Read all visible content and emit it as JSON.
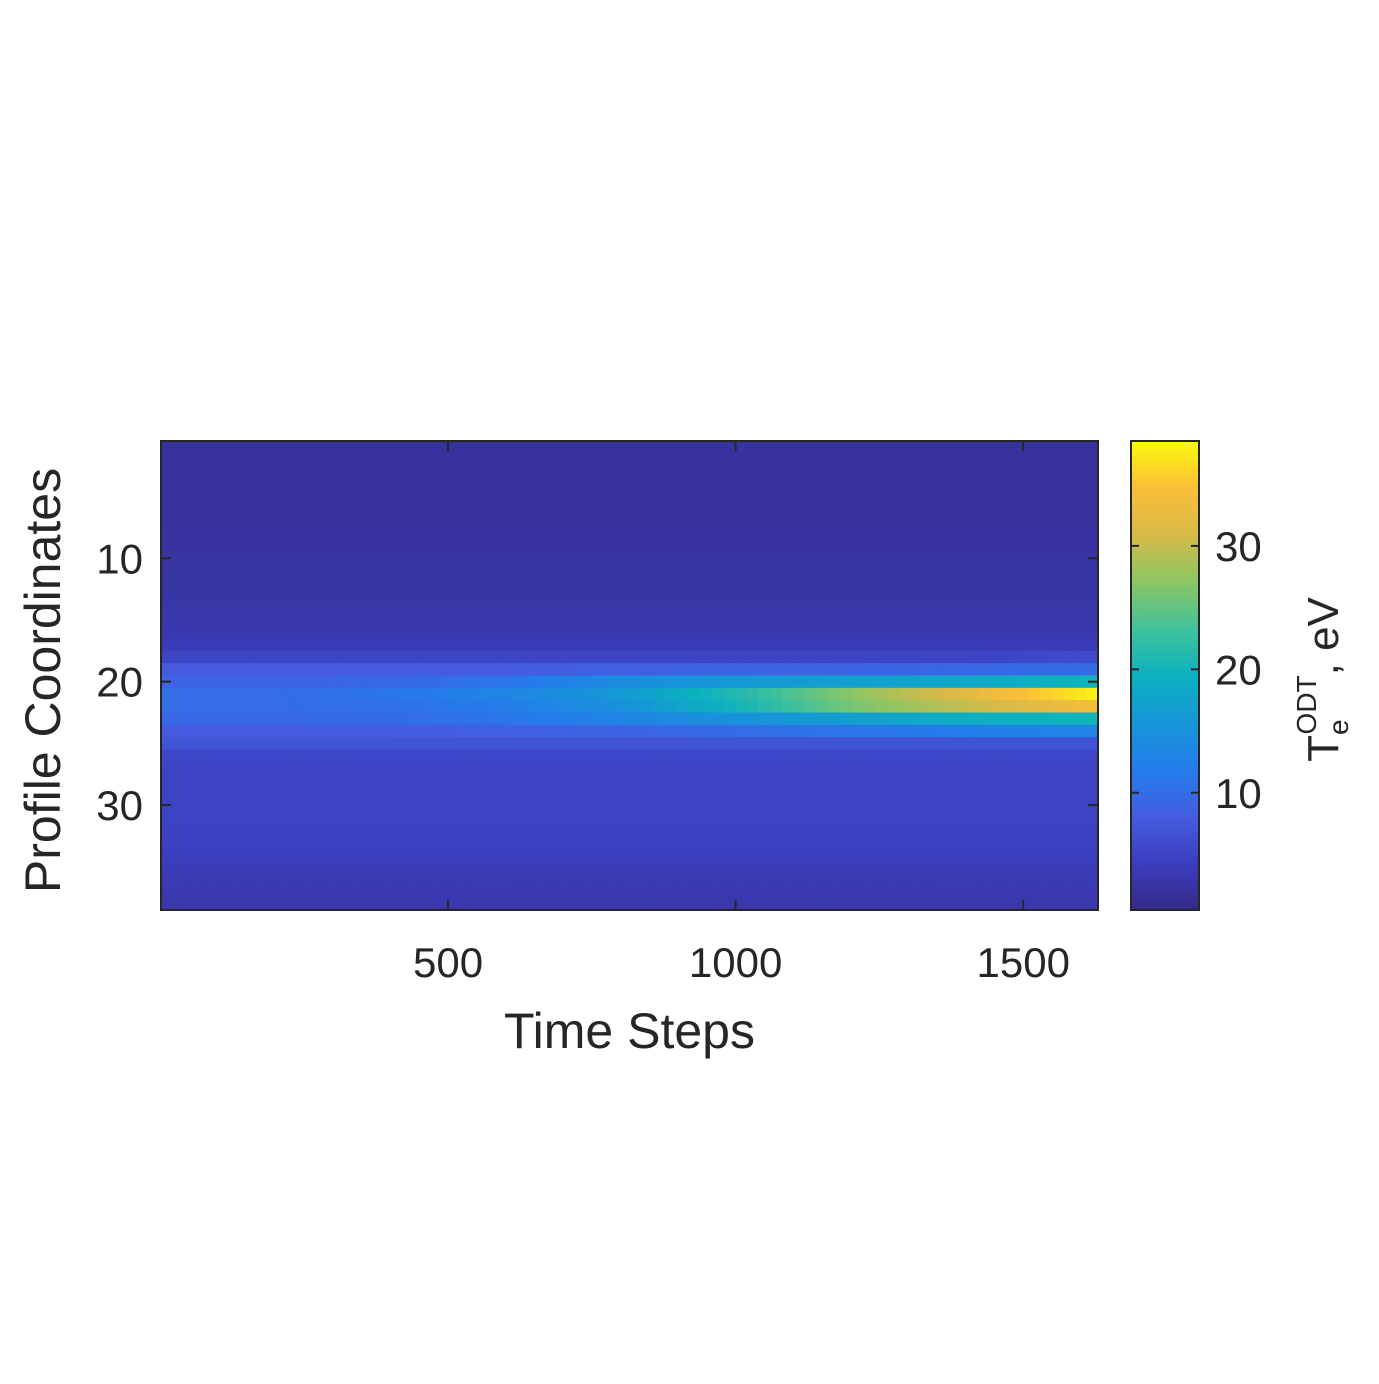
{
  "chart_data": {
    "type": "heatmap",
    "xlabel": "Time Steps",
    "ylabel": "Profile Coordinates",
    "colorbar_label": {
      "base": "T",
      "subscript": "e",
      "superscript": "ODT",
      "suffix": ", eV"
    },
    "xlim": [
      1,
      1630
    ],
    "ylim": [
      38.5,
      0.5
    ],
    "y_direction": "reversed",
    "xticks": [
      500,
      1000,
      1500
    ],
    "xtick_labels": [
      "500",
      "1000",
      "1500"
    ],
    "yticks": [
      10,
      20,
      30
    ],
    "ytick_labels": [
      "10",
      "20",
      "30"
    ],
    "clim": [
      0.5,
      38.5
    ],
    "cticks": [
      10,
      20,
      30
    ],
    "ctick_labels": [
      "10",
      "20",
      "30"
    ],
    "colormap": "parula",
    "grid": false,
    "n_rows": 38,
    "x_samples": [
      1,
      200,
      400,
      600,
      800,
      1000,
      1200,
      1400,
      1630
    ],
    "rows": [
      {
        "y": 1,
        "values": [
          2,
          2,
          2,
          2,
          2,
          2,
          2,
          2,
          2
        ]
      },
      {
        "y": 2,
        "values": [
          2,
          2,
          2,
          2,
          2,
          2,
          2,
          2,
          2
        ]
      },
      {
        "y": 3,
        "values": [
          2,
          2,
          2,
          2,
          2,
          2,
          2,
          2,
          2
        ]
      },
      {
        "y": 4,
        "values": [
          2,
          2,
          2,
          2,
          2,
          2,
          2,
          2,
          2
        ]
      },
      {
        "y": 5,
        "values": [
          2,
          2,
          2,
          2,
          2,
          2,
          2,
          2,
          2
        ]
      },
      {
        "y": 6,
        "values": [
          2,
          2,
          2,
          2,
          2,
          2,
          2,
          2,
          2
        ]
      },
      {
        "y": 7,
        "values": [
          2,
          2,
          2,
          2,
          2,
          2,
          2,
          2,
          2
        ]
      },
      {
        "y": 8,
        "values": [
          2.2,
          2.2,
          2.2,
          2.2,
          2.2,
          2.2,
          2.2,
          2.2,
          2.2
        ]
      },
      {
        "y": 9,
        "values": [
          2.3,
          2.3,
          2.3,
          2.3,
          2.3,
          2.3,
          2.3,
          2.3,
          2.3
        ]
      },
      {
        "y": 10,
        "values": [
          2.4,
          2.4,
          2.4,
          2.4,
          2.4,
          2.4,
          2.4,
          2.4,
          2.4
        ]
      },
      {
        "y": 11,
        "values": [
          2.5,
          2.5,
          2.5,
          2.5,
          2.5,
          2.5,
          2.5,
          2.5,
          2.5
        ]
      },
      {
        "y": 12,
        "values": [
          2.6,
          2.6,
          2.6,
          2.6,
          2.6,
          2.6,
          2.6,
          2.6,
          2.6
        ]
      },
      {
        "y": 13,
        "values": [
          2.7,
          2.7,
          2.7,
          2.7,
          2.7,
          2.7,
          2.7,
          2.7,
          2.7
        ]
      },
      {
        "y": 14,
        "values": [
          2.8,
          2.8,
          2.8,
          2.8,
          2.8,
          2.8,
          2.8,
          2.8,
          2.8
        ]
      },
      {
        "y": 15,
        "values": [
          3,
          3,
          3,
          3,
          3,
          3,
          3,
          3,
          3
        ]
      },
      {
        "y": 16,
        "values": [
          3.2,
          3.2,
          3.2,
          3.2,
          3.2,
          3.2,
          3.2,
          3.2,
          3.2
        ]
      },
      {
        "y": 17,
        "values": [
          3.8,
          3.8,
          3.8,
          3.8,
          3.8,
          3.8,
          3.8,
          3.8,
          3.8
        ]
      },
      {
        "y": 18,
        "values": [
          5,
          5,
          5,
          5,
          5,
          5,
          5,
          5,
          6
        ]
      },
      {
        "y": 19,
        "values": [
          8,
          8,
          8,
          8,
          8.5,
          9,
          9,
          9.5,
          10
        ]
      },
      {
        "y": 20,
        "values": [
          9,
          9,
          9.5,
          11,
          14,
          16,
          17,
          18,
          20
        ]
      },
      {
        "y": 21,
        "values": [
          10,
          10,
          11,
          13,
          16,
          21,
          27,
          32,
          38
        ]
      },
      {
        "y": 22,
        "values": [
          10,
          10,
          10.5,
          12,
          15,
          20,
          26,
          30,
          34
        ]
      },
      {
        "y": 23,
        "values": [
          9.5,
          9.5,
          10,
          11,
          13,
          15,
          17,
          19,
          20
        ]
      },
      {
        "y": 24,
        "values": [
          8,
          8,
          8,
          8.5,
          9,
          10,
          11,
          12,
          13
        ]
      },
      {
        "y": 25,
        "values": [
          7,
          7,
          7,
          7,
          7,
          7,
          7,
          7,
          7
        ]
      },
      {
        "y": 26,
        "values": [
          5.5,
          5.5,
          5.5,
          5.5,
          5.5,
          5.5,
          5.5,
          5.5,
          5.5
        ]
      },
      {
        "y": 27,
        "values": [
          5,
          5,
          5,
          5,
          5,
          5,
          5,
          5,
          5
        ]
      },
      {
        "y": 28,
        "values": [
          5,
          5,
          5,
          5,
          5,
          5,
          5,
          5,
          5
        ]
      },
      {
        "y": 29,
        "values": [
          5,
          5,
          5,
          5,
          5,
          5,
          5,
          5,
          5
        ]
      },
      {
        "y": 30,
        "values": [
          5,
          5,
          5,
          5,
          5,
          5,
          5,
          5,
          5
        ]
      },
      {
        "y": 31,
        "values": [
          5,
          5,
          5,
          5,
          5,
          5,
          5,
          5,
          5
        ]
      },
      {
        "y": 32,
        "values": [
          4.8,
          4.8,
          4.8,
          4.8,
          4.8,
          4.8,
          4.8,
          4.8,
          4.8
        ]
      },
      {
        "y": 33,
        "values": [
          4.6,
          4.6,
          4.6,
          4.6,
          4.6,
          4.6,
          4.6,
          4.6,
          4.6
        ]
      },
      {
        "y": 34,
        "values": [
          4.4,
          4.4,
          4.4,
          4.4,
          4.4,
          4.4,
          4.4,
          4.4,
          4.4
        ]
      },
      {
        "y": 35,
        "values": [
          4,
          4,
          4,
          4,
          4,
          4,
          4,
          4,
          4
        ]
      },
      {
        "y": 36,
        "values": [
          3.7,
          3.7,
          3.7,
          3.7,
          3.7,
          3.7,
          3.7,
          3.7,
          3.7
        ]
      },
      {
        "y": 37,
        "values": [
          3.4,
          3.4,
          3.4,
          3.4,
          3.4,
          3.4,
          3.4,
          3.4,
          3.4
        ]
      },
      {
        "y": 38,
        "values": [
          3.1,
          3.1,
          3.1,
          3.1,
          3.1,
          3.1,
          3.1,
          3.1,
          3.1
        ]
      }
    ]
  }
}
